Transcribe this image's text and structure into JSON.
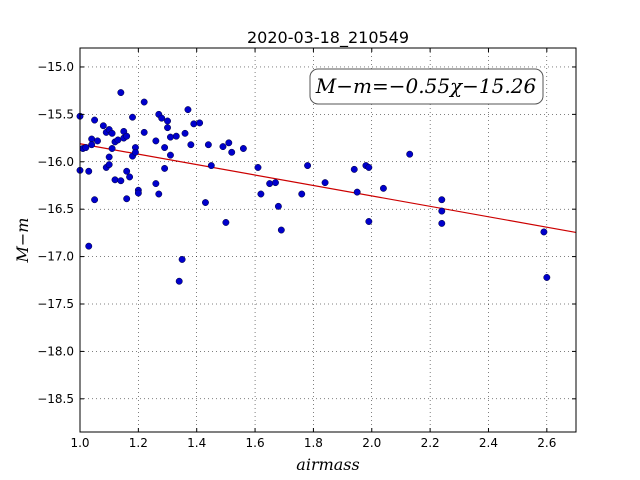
{
  "chart_data": {
    "type": "scatter",
    "title": "2020-03-18_210549",
    "xlabel": "airmass",
    "ylabel": "M−m",
    "xlim": [
      1.0,
      2.7
    ],
    "ylim": [
      -18.85,
      -14.8
    ],
    "y_inverted": true,
    "grid": true,
    "x_ticks": [
      1.0,
      1.2,
      1.4,
      1.6,
      1.8,
      2.0,
      2.2,
      2.4,
      2.6
    ],
    "x_tick_labels": [
      "1.0",
      "1.2",
      "1.4",
      "1.6",
      "1.8",
      "2.0",
      "2.2",
      "2.4",
      "2.6"
    ],
    "y_ticks": [
      -15.0,
      -15.5,
      -16.0,
      -16.5,
      -17.0,
      -17.5,
      -18.0,
      -18.5
    ],
    "y_tick_labels": [
      "−15.0",
      "−15.5",
      "−16.0",
      "−16.5",
      "−17.0",
      "−17.5",
      "−18.0",
      "−18.5"
    ],
    "annotation": "M−m=−0.55χ−15.26",
    "fit": {
      "slope": -0.55,
      "intercept": -15.26,
      "color": "#cc0000"
    },
    "point_color": "#0000cc",
    "series": [
      {
        "x": [
          1.0,
          1.0,
          1.01,
          1.02,
          1.03,
          1.03,
          1.04,
          1.04,
          1.05,
          1.05,
          1.06,
          1.08,
          1.09,
          1.09,
          1.1,
          1.1,
          1.1,
          1.11,
          1.11,
          1.12,
          1.12,
          1.13,
          1.14,
          1.14,
          1.15,
          1.15,
          1.16,
          1.16,
          1.16,
          1.17,
          1.18,
          1.18,
          1.19,
          1.19,
          1.2,
          1.2,
          1.22,
          1.22,
          1.26,
          1.26,
          1.27,
          1.27,
          1.28,
          1.29,
          1.29,
          1.3,
          1.3,
          1.31,
          1.31,
          1.33,
          1.34,
          1.35,
          1.36,
          1.37,
          1.38,
          1.39,
          1.41,
          1.43,
          1.44,
          1.45,
          1.49,
          1.5,
          1.51,
          1.52,
          1.56,
          1.61,
          1.62,
          1.65,
          1.67,
          1.68,
          1.69,
          1.76,
          1.78,
          1.84,
          1.94,
          1.95,
          1.98,
          1.99,
          1.99,
          2.04,
          2.13,
          2.24,
          2.24,
          2.24,
          2.59,
          2.6
        ],
        "y": [
          -15.52,
          -16.09,
          -15.86,
          -15.85,
          -16.1,
          -16.89,
          -15.76,
          -15.82,
          -15.56,
          -16.4,
          -15.78,
          -15.62,
          -16.06,
          -15.69,
          -15.66,
          -15.95,
          -16.03,
          -15.7,
          -15.86,
          -15.79,
          -16.19,
          -15.77,
          -15.27,
          -16.2,
          -15.68,
          -15.75,
          -15.73,
          -16.1,
          -16.39,
          -16.16,
          -15.94,
          -15.53,
          -15.85,
          -15.9,
          -16.3,
          -16.33,
          -15.37,
          -15.69,
          -16.23,
          -15.78,
          -16.34,
          -15.5,
          -15.54,
          -15.85,
          -16.07,
          -15.57,
          -15.64,
          -15.74,
          -15.93,
          -15.73,
          -17.26,
          -17.03,
          -15.7,
          -15.45,
          -15.82,
          -15.6,
          -15.59,
          -16.43,
          -15.82,
          -16.04,
          -15.84,
          -16.64,
          -15.8,
          -15.9,
          -15.86,
          -16.06,
          -16.34,
          -16.23,
          -16.22,
          -16.47,
          -16.72,
          -16.34,
          -16.04,
          -16.22,
          -16.08,
          -16.32,
          -16.04,
          -16.63,
          -16.06,
          -16.28,
          -15.92,
          -16.4,
          -16.52,
          -16.65,
          -16.74,
          -17.22
        ]
      }
    ]
  }
}
